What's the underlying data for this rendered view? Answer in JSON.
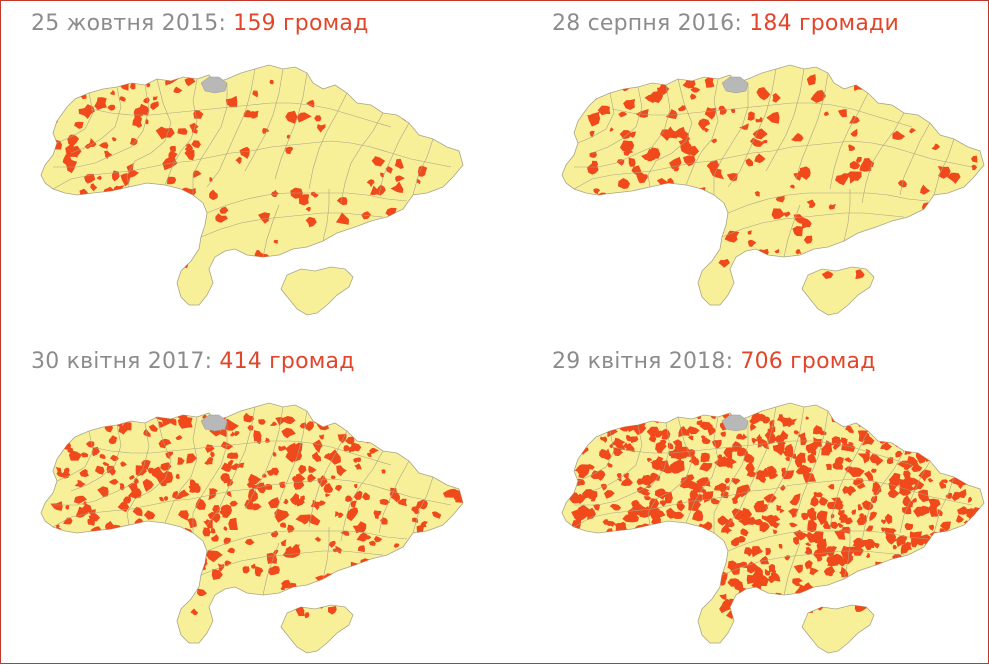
{
  "colors": {
    "land": "#f8f098",
    "border": "#a9a488",
    "community": "#f04a1c",
    "belarus_gap": "#b8b8b8",
    "date_text": "#8c8c8c",
    "count_text": "#e2462a"
  },
  "panels": [
    {
      "date": "25 жовтня 2015",
      "sep": ": ",
      "count": "159 громад",
      "communities": 159
    },
    {
      "date": "28 серпня 2016",
      "sep": ": ",
      "count": "184 громади",
      "communities": 184
    },
    {
      "date": "30 квітня 2017",
      "sep": ": ",
      "count": "414 громад",
      "communities": 414
    },
    {
      "date": "29 квітня 2018",
      "sep": ": ",
      "count": "706 громад",
      "communities": 706
    }
  ]
}
